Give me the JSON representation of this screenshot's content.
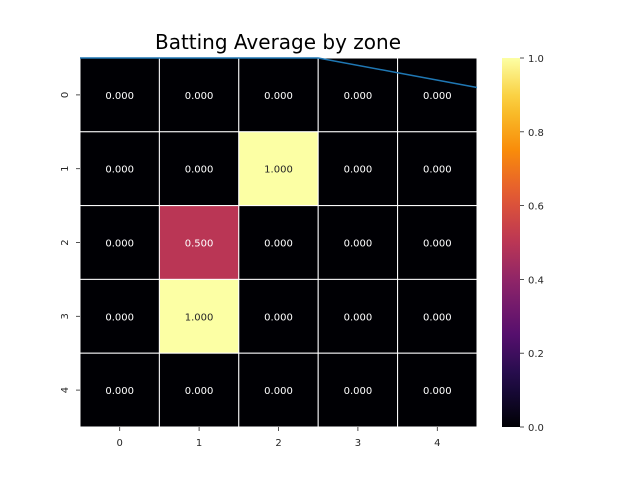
{
  "chart_data": {
    "type": "heatmap",
    "title": "Batting Average by zone",
    "xlabel": "",
    "ylabel": "",
    "x_categories": [
      "0",
      "1",
      "2",
      "3",
      "4"
    ],
    "y_categories": [
      "0",
      "1",
      "2",
      "3",
      "4"
    ],
    "values": [
      [
        0.0,
        0.0,
        0.0,
        0.0,
        0.0
      ],
      [
        0.0,
        0.0,
        1.0,
        0.0,
        0.0
      ],
      [
        0.0,
        0.5,
        0.0,
        0.0,
        0.0
      ],
      [
        0.0,
        1.0,
        0.0,
        0.0,
        0.0
      ],
      [
        0.0,
        0.0,
        0.0,
        0.0,
        0.0
      ]
    ],
    "value_labels": [
      [
        "0.000",
        "0.000",
        "0.000",
        "0.000",
        "0.000"
      ],
      [
        "0.000",
        "0.000",
        "1.000",
        "0.000",
        "0.000"
      ],
      [
        "0.000",
        "0.500",
        "0.000",
        "0.000",
        "0.000"
      ],
      [
        "0.000",
        "1.000",
        "0.000",
        "0.000",
        "0.000"
      ],
      [
        "0.000",
        "0.000",
        "0.000",
        "0.000",
        "0.000"
      ]
    ],
    "colorbar": {
      "range": [
        0.0,
        1.0
      ],
      "ticks": [
        "0.0",
        "0.2",
        "0.4",
        "0.6",
        "0.8",
        "1.0"
      ],
      "colormap": "inferno"
    },
    "overlay_line": {
      "color": "#1f77b4",
      "x": [
        0.0,
        2.0,
        3.0,
        4.0,
        5.0
      ],
      "y": [
        0.0,
        0.0,
        0.0,
        0.2,
        0.4
      ]
    },
    "grid": false,
    "cell_border_color": "#ffffff"
  }
}
